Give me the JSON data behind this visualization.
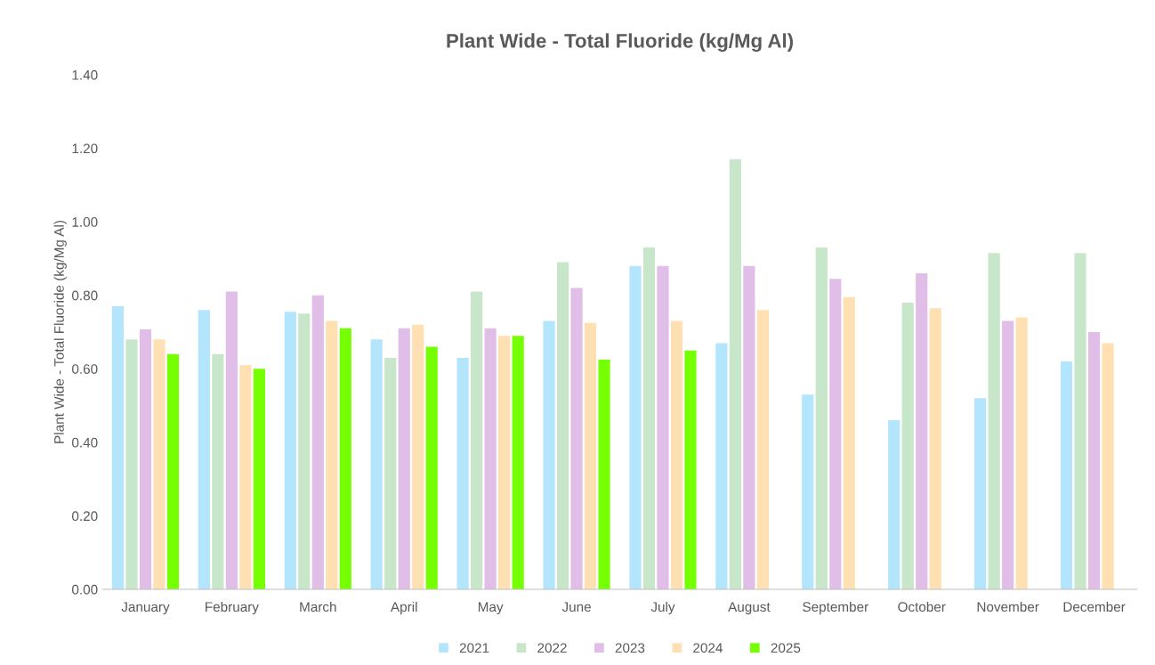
{
  "chart_data": {
    "type": "bar",
    "title": "Plant Wide - Total Fluoride (kg/Mg Al)",
    "ylabel": "Plant Wide - Total Fluoride (kg/Mg Al)",
    "categories": [
      "January",
      "February",
      "March",
      "April",
      "May",
      "June",
      "July",
      "August",
      "September",
      "October",
      "November",
      "December"
    ],
    "series": [
      {
        "name": "2021",
        "color": "#b3e5fc",
        "values": [
          0.77,
          0.76,
          0.755,
          0.68,
          0.63,
          0.73,
          0.88,
          0.67,
          0.53,
          0.46,
          0.52,
          0.62
        ]
      },
      {
        "name": "2022",
        "color": "#c8e6c9",
        "values": [
          0.68,
          0.64,
          0.75,
          0.63,
          0.81,
          0.89,
          0.93,
          1.17,
          0.93,
          0.78,
          0.915,
          0.915
        ]
      },
      {
        "name": "2023",
        "color": "#e1bee7",
        "values": [
          0.707,
          0.81,
          0.8,
          0.71,
          0.71,
          0.82,
          0.88,
          0.88,
          0.845,
          0.86,
          0.73,
          0.7
        ]
      },
      {
        "name": "2024",
        "color": "#ffe0b2",
        "values": [
          0.68,
          0.61,
          0.73,
          0.72,
          0.69,
          0.725,
          0.73,
          0.76,
          0.795,
          0.765,
          0.74,
          0.67
        ]
      },
      {
        "name": "2025",
        "color": "#76ff03",
        "values": [
          0.64,
          0.6,
          0.71,
          0.66,
          0.69,
          0.625,
          0.65,
          null,
          null,
          null,
          null,
          null
        ]
      }
    ],
    "ylim": [
      0,
      1.4
    ],
    "yticks": [
      {
        "value": 0,
        "label": "0.00"
      },
      {
        "value": 0.2,
        "label": "0.20"
      },
      {
        "value": 0.4,
        "label": "0.40"
      },
      {
        "value": 0.6,
        "label": "0.60"
      },
      {
        "value": 0.8,
        "label": "0.80"
      },
      {
        "value": 1.0,
        "label": "1.00"
      },
      {
        "value": 1.2,
        "label": "1.20"
      },
      {
        "value": 1.4,
        "label": "1.40"
      }
    ],
    "grid": false,
    "legend": "bottom"
  }
}
